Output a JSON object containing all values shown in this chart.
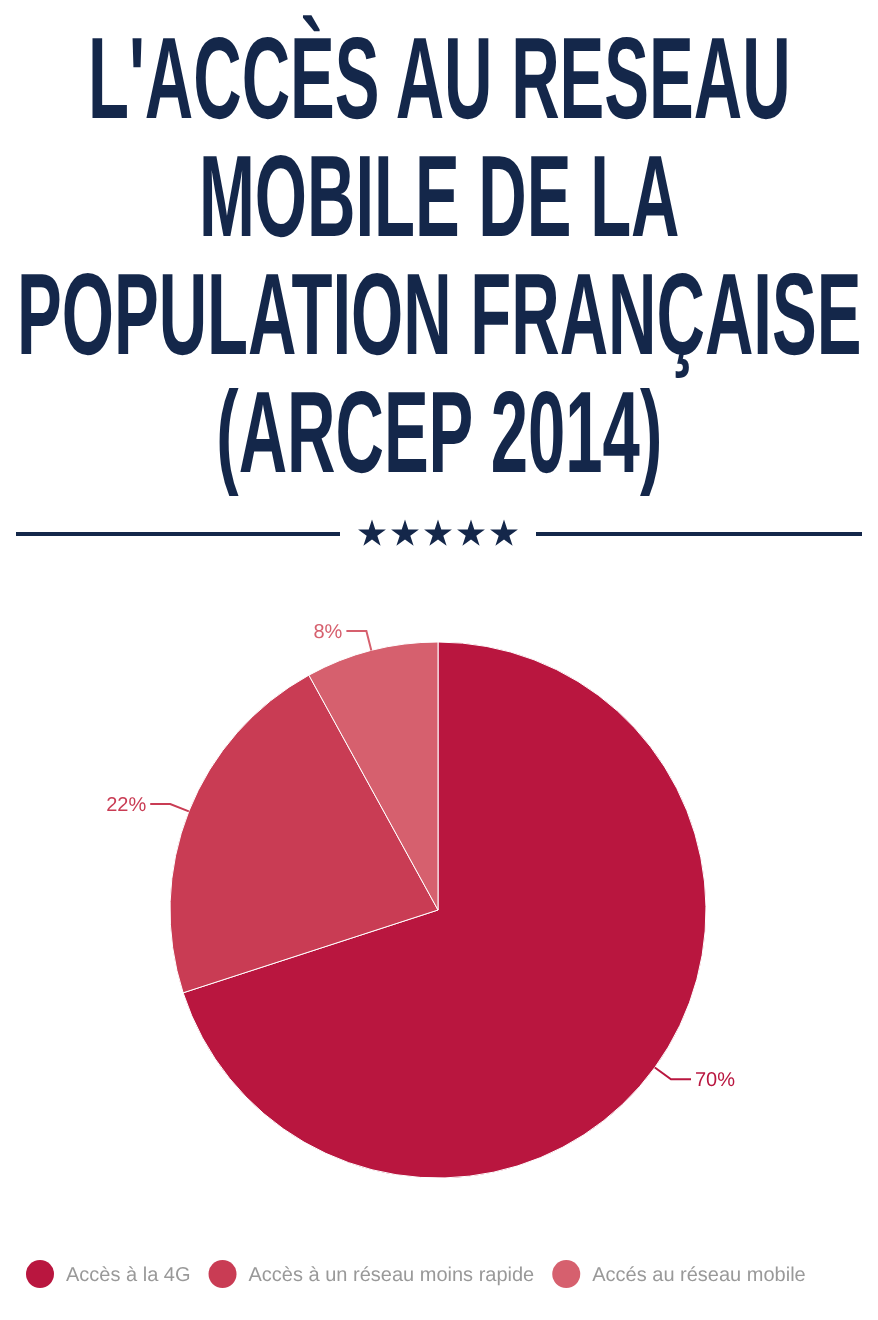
{
  "chart_data": {
    "type": "pie",
    "title": "L'ACCÈS AU RESEAU MOBILE DE LA POPULATION FRANÇAISE (ARCEP 2014)",
    "categories": [
      "Accès à la 4G",
      "Accès à un réseau moins rapide",
      "Accés au réseau mobile"
    ],
    "values": [
      70,
      22,
      8
    ],
    "colors": [
      "#b9163f",
      "#c93c54",
      "#d6606e"
    ],
    "value_labels": [
      "70%",
      "22%",
      "8%"
    ],
    "legend": "bottom"
  }
}
